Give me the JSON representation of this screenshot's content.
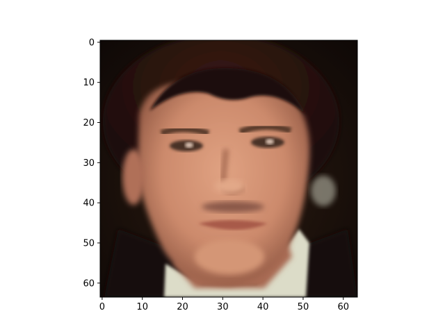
{
  "figure": {
    "background": "#ffffff",
    "image_resolution": [
      64,
      64
    ],
    "colormap": "rgb",
    "subject": "face-portrait"
  },
  "axes": {
    "x_ticks": [
      "0",
      "10",
      "20",
      "30",
      "40",
      "50",
      "60"
    ],
    "y_ticks": [
      "0",
      "10",
      "20",
      "30",
      "40",
      "50",
      "60"
    ],
    "x_range": [
      -0.5,
      63.5
    ],
    "y_range": [
      -0.5,
      63.5
    ],
    "y_inverted": true,
    "grid": false
  }
}
